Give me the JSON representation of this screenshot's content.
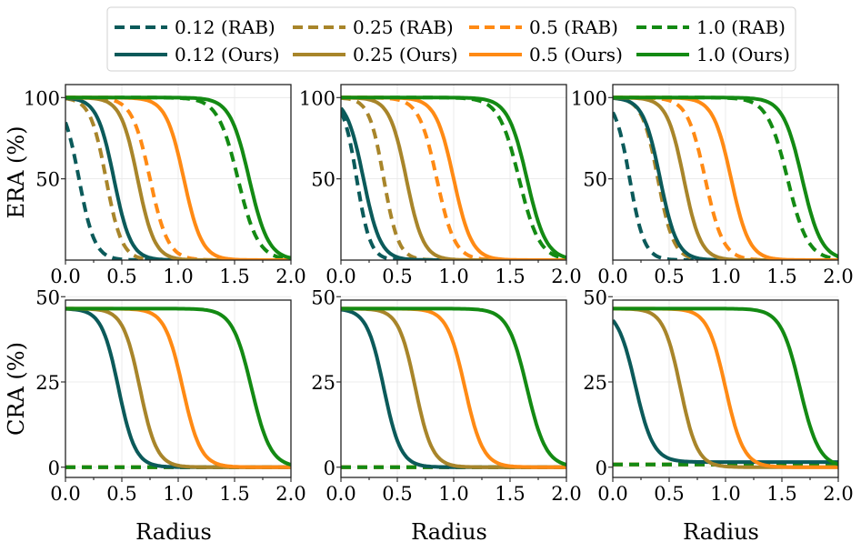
{
  "chart_data": {
    "type": "line",
    "layout": "2x3 grid",
    "legend": {
      "position": "top-center",
      "entries": [
        {
          "label": "0.12 (RAB)",
          "color": "#0b5a5a",
          "style": "dashed"
        },
        {
          "label": "0.25 (RAB)",
          "color": "#a8852a",
          "style": "dashed"
        },
        {
          "label": "0.5 (RAB)",
          "color": "#ff8a14",
          "style": "dashed"
        },
        {
          "label": "1.0 (RAB)",
          "color": "#138a13",
          "style": "dashed"
        },
        {
          "label": "0.12 (Ours)",
          "color": "#0b5a5a",
          "style": "solid"
        },
        {
          "label": "0.25 (Ours)",
          "color": "#a8852a",
          "style": "solid"
        },
        {
          "label": "0.5 (Ours)",
          "color": "#ff8a14",
          "style": "solid"
        },
        {
          "label": "1.0 (Ours)",
          "color": "#138a13",
          "style": "solid"
        }
      ]
    },
    "x_axis": {
      "label": "Radius",
      "range": [
        0,
        2.0
      ],
      "ticks": [
        "0.0",
        "0.5",
        "1.0",
        "1.5",
        "2.0"
      ],
      "tick_values": [
        0,
        0.5,
        1.0,
        1.5,
        2.0
      ]
    },
    "rows": [
      {
        "ylabel": "ERA (%)",
        "ylim": [
          0,
          108
        ],
        "ytick_values": [
          50,
          100
        ],
        "yticks": [
          "50",
          "100"
        ]
      },
      {
        "ylabel": "CRA (%)",
        "ylim": [
          -3,
          49
        ],
        "ytick_values": [
          0,
          25,
          50
        ],
        "yticks": [
          "0",
          "25",
          "50"
        ]
      }
    ],
    "panels": [
      {
        "row": 0,
        "col": 0,
        "series": [
          {
            "name": "0.12 (RAB)",
            "sigmoid": {
              "top": 100,
              "mid": 0.12,
              "width": 0.07
            }
          },
          {
            "name": "0.25 (RAB)",
            "sigmoid": {
              "top": 100,
              "mid": 0.36,
              "width": 0.07
            }
          },
          {
            "name": "0.5 (RAB)",
            "sigmoid": {
              "top": 100,
              "mid": 0.75,
              "width": 0.08
            }
          },
          {
            "name": "1.0 (RAB)",
            "sigmoid": {
              "top": 100,
              "mid": 1.53,
              "width": 0.09
            }
          },
          {
            "name": "0.12 (Ours)",
            "sigmoid": {
              "top": 100,
              "mid": 0.43,
              "width": 0.075
            }
          },
          {
            "name": "0.25 (Ours)",
            "sigmoid": {
              "top": 100,
              "mid": 0.64,
              "width": 0.075
            }
          },
          {
            "name": "0.5 (Ours)",
            "sigmoid": {
              "top": 100,
              "mid": 1.05,
              "width": 0.08
            }
          },
          {
            "name": "1.0 (Ours)",
            "sigmoid": {
              "top": 100,
              "mid": 1.63,
              "width": 0.085
            }
          }
        ]
      },
      {
        "row": 0,
        "col": 1,
        "series": [
          {
            "name": "0.12 (RAB)",
            "sigmoid": {
              "top": 100,
              "mid": 0.14,
              "width": 0.06
            }
          },
          {
            "name": "0.25 (RAB)",
            "sigmoid": {
              "top": 100,
              "mid": 0.38,
              "width": 0.065
            }
          },
          {
            "name": "0.5 (RAB)",
            "sigmoid": {
              "top": 100,
              "mid": 0.85,
              "width": 0.08
            }
          },
          {
            "name": "1.0 (RAB)",
            "sigmoid": {
              "top": 100,
              "mid": 1.58,
              "width": 0.09
            }
          },
          {
            "name": "0.12 (Ours)",
            "sigmoid": {
              "top": 100,
              "mid": 0.2,
              "width": 0.075
            }
          },
          {
            "name": "0.25 (Ours)",
            "sigmoid": {
              "top": 100,
              "mid": 0.58,
              "width": 0.075
            }
          },
          {
            "name": "0.5 (Ours)",
            "sigmoid": {
              "top": 100,
              "mid": 1.0,
              "width": 0.08
            }
          },
          {
            "name": "1.0 (Ours)",
            "sigmoid": {
              "top": 100,
              "mid": 1.65,
              "width": 0.085
            }
          }
        ]
      },
      {
        "row": 0,
        "col": 2,
        "series": [
          {
            "name": "0.12 (RAB)",
            "sigmoid": {
              "top": 100,
              "mid": 0.15,
              "width": 0.065
            }
          },
          {
            "name": "0.25 (RAB)",
            "sigmoid": {
              "top": 100,
              "mid": 0.4,
              "width": 0.07
            }
          },
          {
            "name": "0.5 (RAB)",
            "sigmoid": {
              "top": 100,
              "mid": 0.82,
              "width": 0.08
            }
          },
          {
            "name": "1.0 (RAB)",
            "sigmoid": {
              "top": 100,
              "mid": 1.55,
              "width": 0.09
            }
          },
          {
            "name": "0.12 (Ours)",
            "sigmoid": {
              "top": 100,
              "mid": 0.42,
              "width": 0.075
            }
          },
          {
            "name": "0.25 (Ours)",
            "sigmoid": {
              "top": 100,
              "mid": 0.63,
              "width": 0.075
            }
          },
          {
            "name": "0.5 (Ours)",
            "sigmoid": {
              "top": 100,
              "mid": 1.05,
              "width": 0.08
            }
          },
          {
            "name": "1.0 (Ours)",
            "sigmoid": {
              "top": 100,
              "mid": 1.68,
              "width": 0.085
            }
          }
        ]
      },
      {
        "row": 1,
        "col": 0,
        "series": [
          {
            "name": "0.12 (RAB)",
            "constant": 0
          },
          {
            "name": "0.25 (RAB)",
            "constant": 0
          },
          {
            "name": "0.5 (RAB)",
            "constant": 0
          },
          {
            "name": "1.0 (RAB)",
            "constant": 0
          },
          {
            "name": "0.12 (Ours)",
            "sigmoid": {
              "top": 46.5,
              "mid": 0.47,
              "width": 0.075
            }
          },
          {
            "name": "0.25 (Ours)",
            "sigmoid": {
              "top": 46.5,
              "mid": 0.66,
              "width": 0.075
            }
          },
          {
            "name": "0.5 (Ours)",
            "sigmoid": {
              "top": 46.5,
              "mid": 1.04,
              "width": 0.08
            }
          },
          {
            "name": "1.0 (Ours)",
            "sigmoid": {
              "top": 46.5,
              "mid": 1.65,
              "width": 0.085
            }
          }
        ]
      },
      {
        "row": 1,
        "col": 1,
        "series": [
          {
            "name": "0.12 (RAB)",
            "constant": 0
          },
          {
            "name": "0.25 (RAB)",
            "constant": 0
          },
          {
            "name": "0.5 (RAB)",
            "constant": 0
          },
          {
            "name": "1.0 (RAB)",
            "constant": 0
          },
          {
            "name": "0.12 (Ours)",
            "sigmoid": {
              "top": 46.5,
              "mid": 0.38,
              "width": 0.075
            }
          },
          {
            "name": "0.25 (Ours)",
            "sigmoid": {
              "top": 46.5,
              "mid": 0.66,
              "width": 0.075
            }
          },
          {
            "name": "0.5 (Ours)",
            "sigmoid": {
              "top": 46.5,
              "mid": 1.1,
              "width": 0.08
            }
          },
          {
            "name": "1.0 (Ours)",
            "sigmoid": {
              "top": 46.5,
              "mid": 1.65,
              "width": 0.085
            }
          }
        ]
      },
      {
        "row": 1,
        "col": 2,
        "series": [
          {
            "name": "0.12 (RAB)",
            "constant": 0.8
          },
          {
            "name": "0.25 (RAB)",
            "constant": 0.8
          },
          {
            "name": "0.5 (RAB)",
            "constant": 0.8
          },
          {
            "name": "1.0 (RAB)",
            "constant": 0.8
          },
          {
            "name": "0.12 (Ours)",
            "sigmoid": {
              "top": 46.5,
              "mid": 0.2,
              "width": 0.08,
              "floor": 1.5
            }
          },
          {
            "name": "0.25 (Ours)",
            "sigmoid": {
              "top": 46.5,
              "mid": 0.6,
              "width": 0.075
            }
          },
          {
            "name": "0.5 (Ours)",
            "sigmoid": {
              "top": 46.5,
              "mid": 1.0,
              "width": 0.08
            }
          },
          {
            "name": "1.0 (Ours)",
            "sigmoid": {
              "top": 46.5,
              "mid": 1.66,
              "width": 0.085
            }
          }
        ]
      }
    ]
  }
}
